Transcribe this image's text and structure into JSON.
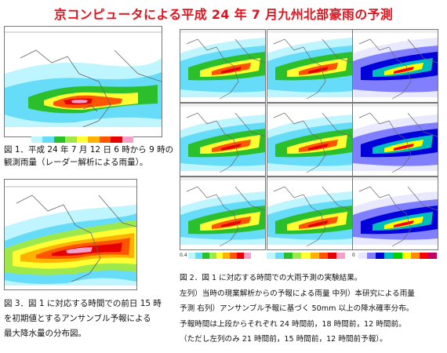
{
  "title": "京コンピュータによる平成 24 年 7 月九州北部豪雨の予測",
  "fig1": {
    "caption_lines": [
      "図 1．平成 24 年 7 月 12 日 6 時から 9 時の",
      "観測雨量（レーダー解析による雨量）。"
    ]
  },
  "fig3": {
    "caption_lines": [
      "図 3．図 1 に対応する時間での前日 15 時",
      "を初期値とするアンサンブル予報による",
      "最大降水量の分布図。"
    ]
  },
  "fig2": {
    "caption_lines": [
      "図 2．図 1 に対応する時間での大雨予測の実験結果。",
      "左列）当時の現業解析からの予報による雨量 中列）本研究による雨量",
      "予測 右列）アンサンブル予報に基づく 50mm 以上の降水確率分布。",
      "予報時間は上段からそれぞれ 24 時間前，18 時間前，12 時間前。",
      "（ただし左列のみ 21 時間前，15 時間前，12 時間前予報）。"
    ]
  },
  "colors": {
    "title": "#e0141e",
    "rain_scale": [
      "#bff5ff",
      "#66dcf8",
      "#2bbf2b",
      "#9fe84a",
      "#ffff33",
      "#ffb300",
      "#ff5500",
      "#e60000",
      "#f4a0c8"
    ],
    "prob_scale": [
      "#e8e8ff",
      "#8080ff",
      "#0000d8",
      "#00bdbd",
      "#00d000",
      "#ffff00",
      "#ff8c00",
      "#ff0000",
      "#c00060"
    ]
  },
  "scale_labels": {
    "rain_left": "0.4",
    "prob_left": "0"
  }
}
